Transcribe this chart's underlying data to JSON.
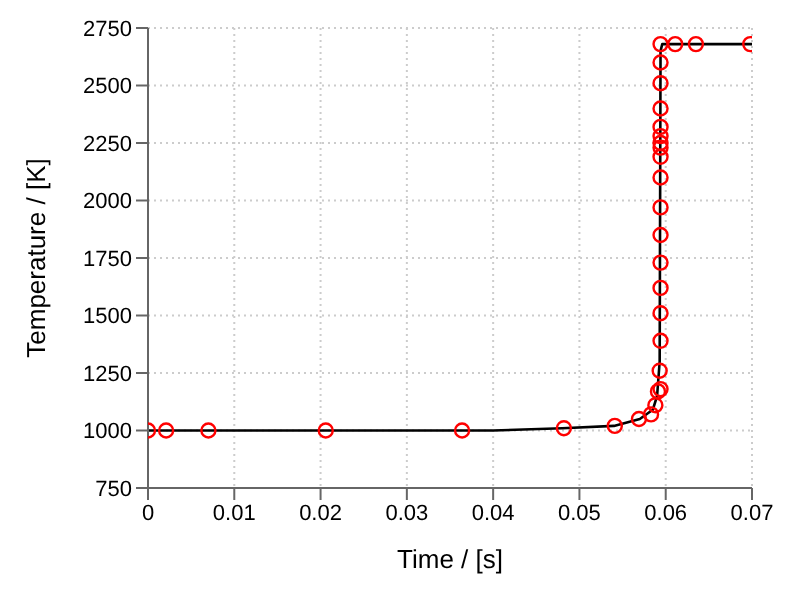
{
  "chart_data": {
    "type": "line",
    "xlabel": "Time / [s]",
    "ylabel": "Temperature / [K]",
    "xlim": [
      0,
      0.07
    ],
    "xticks": [
      0,
      0.01,
      0.02,
      0.03,
      0.04,
      0.05,
      0.06,
      0.07
    ],
    "ylim": [
      750,
      2750
    ],
    "yticks": [
      750,
      1000,
      1250,
      1500,
      1750,
      2000,
      2250,
      2500,
      2750
    ],
    "grid": true,
    "legend": false,
    "series": [
      {
        "color": "#000000",
        "marker": "none",
        "line_style": "solid",
        "x": [
          0,
          0.02,
          0.04,
          0.048,
          0.054,
          0.057,
          0.0585,
          0.059,
          0.0593,
          0.0594,
          0.0596,
          0.07
        ],
        "values": [
          1000,
          1000,
          1000,
          1010,
          1020,
          1050,
          1090,
          1150,
          1300,
          2650,
          2680,
          2680
        ]
      },
      {
        "type": "scatter",
        "color": "#ff0000",
        "marker": "circle",
        "x": [
          0,
          0.0021,
          0.007,
          0.0206,
          0.0364,
          0.0482,
          0.0541,
          0.0569,
          0.0583,
          0.0588,
          0.0591,
          0.0593,
          0.0594,
          0.0594,
          0.0594,
          0.0594,
          0.0594,
          0.0594,
          0.0594,
          0.0594,
          0.0594,
          0.0594,
          0.0594,
          0.0594,
          0.0594,
          0.0594,
          0.0594,
          0.0594,
          0.0594,
          0.0611,
          0.0635,
          0.0698
        ],
        "values": [
          1000,
          1000,
          1000,
          1000,
          1000,
          1010,
          1020,
          1050,
          1070,
          1110,
          1170,
          1260,
          1180,
          1390,
          1510,
          1620,
          1730,
          1850,
          1970,
          2100,
          2190,
          2230,
          2250,
          2280,
          2320,
          2400,
          2510,
          2600,
          2680,
          2680,
          2680,
          2680
        ]
      }
    ]
  }
}
